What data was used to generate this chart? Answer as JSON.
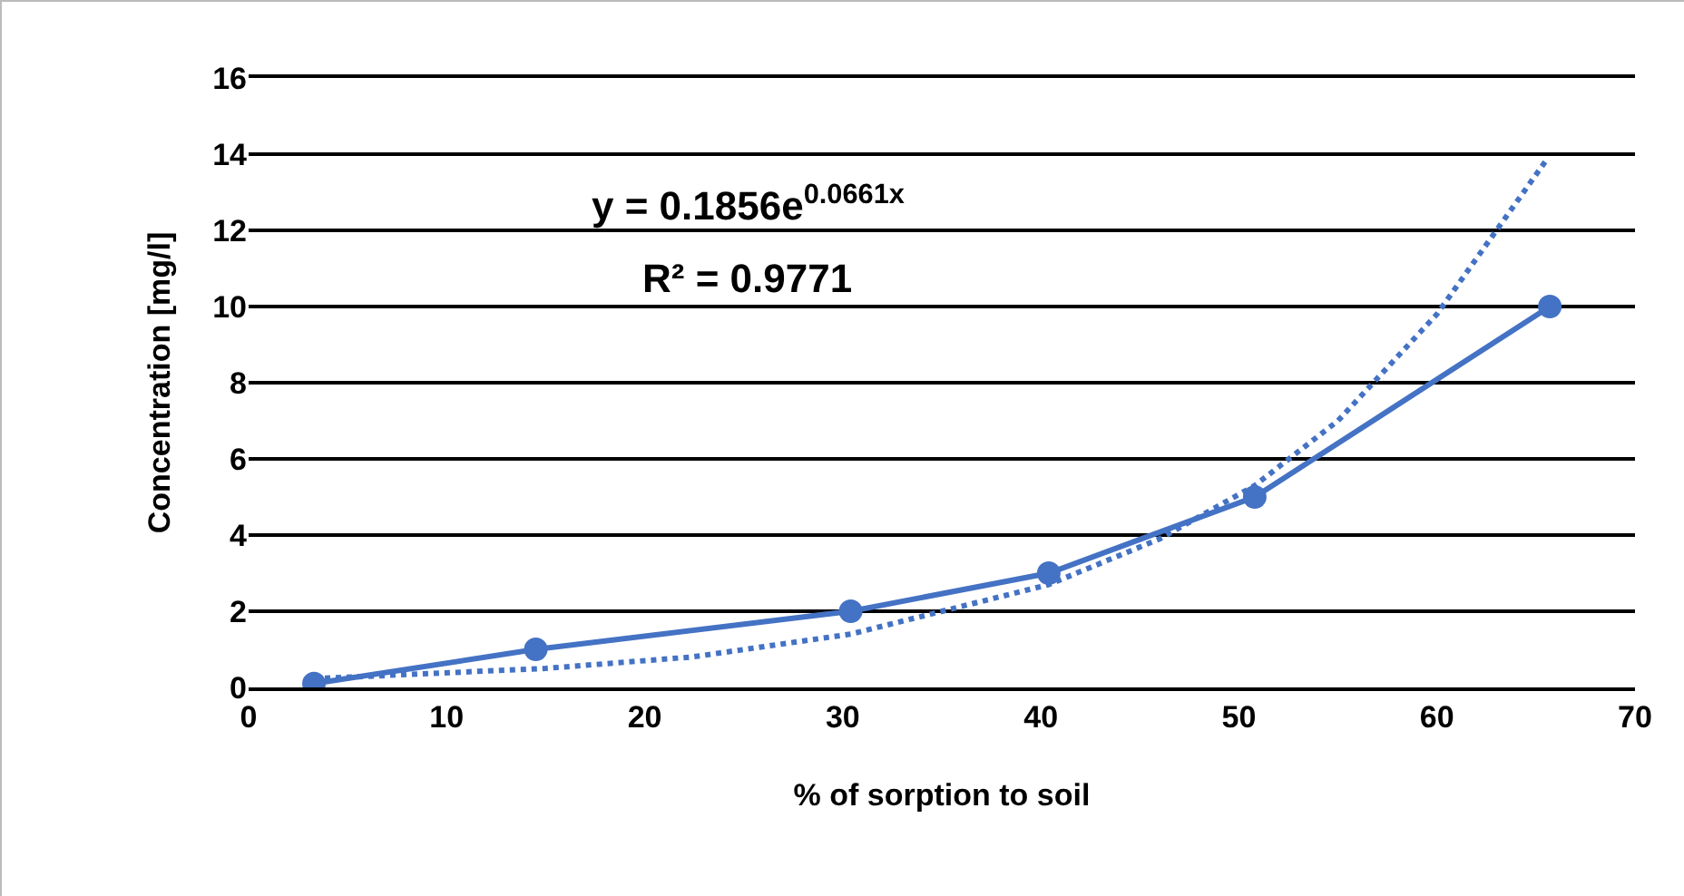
{
  "chart_data": {
    "type": "line",
    "xlabel": "% of sorption to soil",
    "ylabel": "Concentration [mg/l]",
    "xlim": [
      0,
      70
    ],
    "xticks": [
      0,
      10,
      20,
      30,
      40,
      50,
      60,
      70
    ],
    "ylim": [
      0,
      16
    ],
    "yticks": [
      0,
      2,
      4,
      6,
      8,
      10,
      12,
      14,
      16
    ],
    "grid": "y",
    "marker": "circle",
    "line_style": "solid",
    "x": [
      3.3,
      14.5,
      30.4,
      40.4,
      50.8,
      65.7
    ],
    "series": [
      {
        "color": "#4472c4",
        "values": [
          0.1,
          1,
          2,
          3,
          5,
          10
        ]
      },
      {
        "type": "line",
        "color": "#4472c4",
        "marker": "none",
        "line_style": "dotted",
        "x": [
          3.3,
          15,
          22.4,
          30.4,
          40.4,
          46,
          50.8,
          55,
          60,
          65.6
        ],
        "values": [
          0.23,
          0.5,
          0.8,
          1.4,
          2.7,
          3.9,
          5.3,
          7,
          9.8,
          13.9
        ]
      }
    ],
    "annotations": [
      "y = 0.1856e$^{0.0661x}$",
      "R² = 0.9771"
    ]
  }
}
